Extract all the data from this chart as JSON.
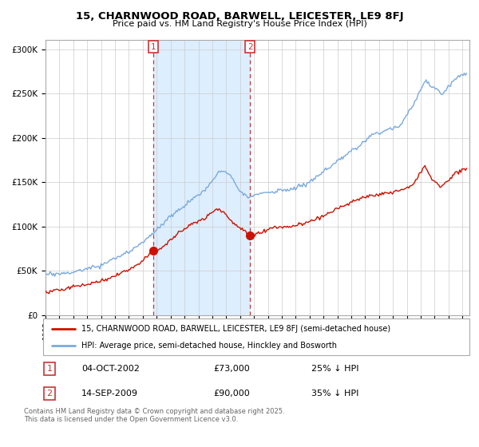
{
  "title": "15, CHARNWOOD ROAD, BARWELL, LEICESTER, LE9 8FJ",
  "subtitle": "Price paid vs. HM Land Registry's House Price Index (HPI)",
  "legend_line1": "15, CHARNWOOD ROAD, BARWELL, LEICESTER, LE9 8FJ (semi-detached house)",
  "legend_line2": "HPI: Average price, semi-detached house, Hinckley and Bosworth",
  "transaction1_date": "04-OCT-2002",
  "transaction1_price": "£73,000",
  "transaction1_hpi": "25% ↓ HPI",
  "transaction2_date": "14-SEP-2009",
  "transaction2_price": "£90,000",
  "transaction2_hpi": "35% ↓ HPI",
  "footer": "Contains HM Land Registry data © Crown copyright and database right 2025.\nThis data is licensed under the Open Government Licence v3.0.",
  "hpi_color": "#7aaadd",
  "price_paid_color": "#cc1100",
  "marker_color": "#cc1100",
  "shading_color": "#ddeeff",
  "background_color": "#ffffff",
  "dashed_color": "#cc3333",
  "ylim": [
    0,
    310000
  ],
  "yticks": [
    0,
    50000,
    100000,
    150000,
    200000,
    250000,
    300000
  ],
  "transaction1_x": 2002.75,
  "transaction1_y": 73000,
  "transaction2_x": 2009.71,
  "transaction2_y": 90000,
  "xmin": 1995.0,
  "xmax": 2025.5
}
